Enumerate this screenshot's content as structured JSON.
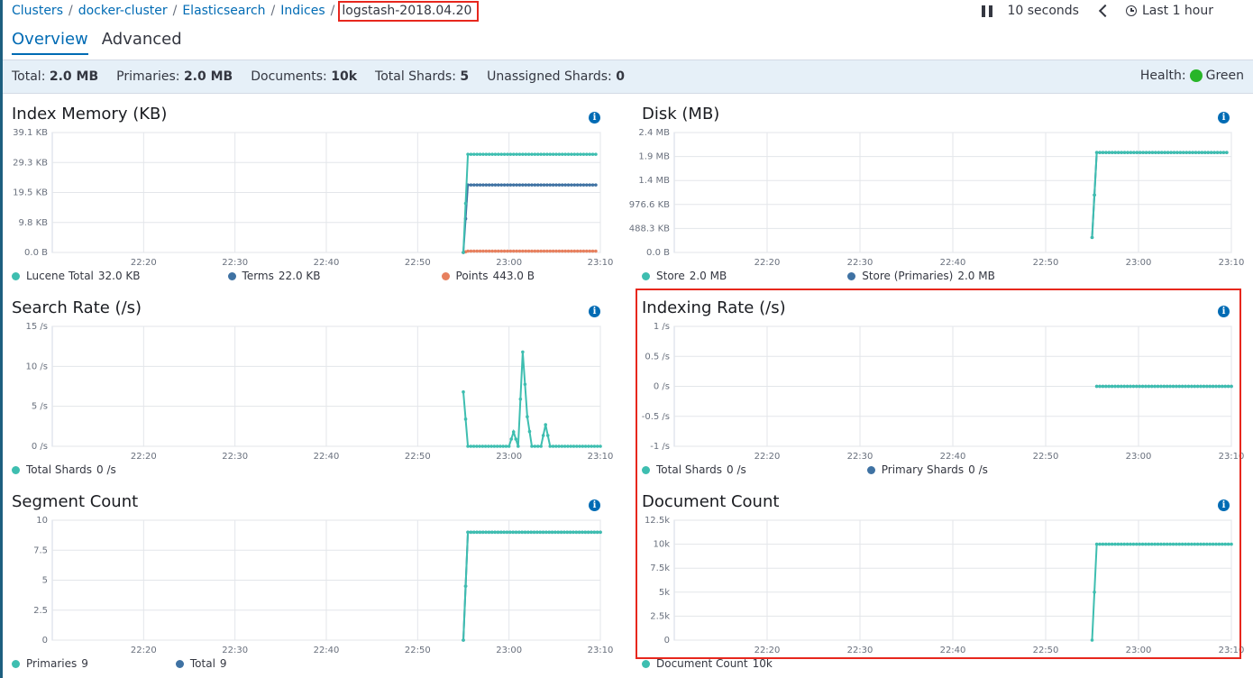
{
  "breadcrumb": [
    {
      "label": "Clusters"
    },
    {
      "label": "docker-cluster"
    },
    {
      "label": "Elasticsearch"
    },
    {
      "label": "Indices"
    }
  ],
  "breadcrumb_current": "logstash-2018.04.20",
  "controls": {
    "pause_icon": "pause-icon",
    "interval": "10 seconds",
    "time_range": "Last 1 hour"
  },
  "tabs": [
    {
      "label": "Overview",
      "active": true
    },
    {
      "label": "Advanced",
      "active": false
    }
  ],
  "summary": {
    "stats": [
      {
        "label": "Total:",
        "value": "2.0 MB"
      },
      {
        "label": "Primaries:",
        "value": "2.0 MB"
      },
      {
        "label": "Documents:",
        "value": "10k"
      },
      {
        "label": "Total Shards:",
        "value": "5"
      },
      {
        "label": "Unassigned Shards:",
        "value": "0"
      }
    ],
    "health_label": "Health:",
    "health_value": "Green",
    "health_color": "#28b528"
  },
  "colors": {
    "teal": "#3ebeb0",
    "blue": "#3f72a3",
    "orange": "#e7805e",
    "highlight": "#e7271d",
    "link": "#006bb4"
  },
  "chart_data": [
    {
      "type": "line",
      "title": "Index Memory (KB)",
      "yticks": [
        "39.1 KB",
        "29.3 KB",
        "19.5 KB",
        "9.8 KB",
        "0.0 B"
      ],
      "ylim": [
        0,
        39.1
      ],
      "xticks": [
        "22:20",
        "22:30",
        "22:40",
        "22:50",
        "23:00",
        "23:10"
      ],
      "series": [
        {
          "name": "Lucene Total",
          "value": "32.0 KB",
          "color": "#3ebeb0",
          "points": [
            [
              "22:55",
              0
            ],
            [
              "22:55.5",
              32.0
            ],
            [
              "23:09.5",
              32.0
            ]
          ]
        },
        {
          "name": "Terms",
          "value": "22.0 KB",
          "color": "#3f72a3",
          "points": [
            [
              "22:55",
              0
            ],
            [
              "22:55.5",
              22.0
            ],
            [
              "23:09.5",
              22.0
            ]
          ]
        },
        {
          "name": "Points",
          "value": "443.0 B",
          "color": "#e7805e",
          "points": [
            [
              "22:55",
              0
            ],
            [
              "22:55.5",
              0.43
            ],
            [
              "23:09.5",
              0.43
            ]
          ]
        }
      ]
    },
    {
      "type": "line",
      "title": "Disk (MB)",
      "yticks": [
        "2.4 MB",
        "1.9 MB",
        "1.4 MB",
        "976.6 KB",
        "488.3 KB",
        "0.0 B"
      ],
      "ylim": [
        0,
        2.4
      ],
      "xticks": [
        "22:20",
        "22:30",
        "22:40",
        "22:50",
        "23:00",
        "23:10"
      ],
      "series": [
        {
          "name": "Store",
          "value": "2.0 MB",
          "color": "#3ebeb0",
          "points": [
            [
              "22:55",
              0.3
            ],
            [
              "22:55.5",
              2.0
            ],
            [
              "23:09.5",
              2.0
            ]
          ]
        },
        {
          "name": "Store (Primaries)",
          "value": "2.0 MB",
          "color": "#3f72a3",
          "points": [
            [
              "22:55",
              0.3
            ],
            [
              "22:55.5",
              2.0
            ],
            [
              "23:09.5",
              2.0
            ]
          ]
        }
      ]
    },
    {
      "type": "line",
      "title": "Search Rate (/s)",
      "yticks": [
        "15 /s",
        "10 /s",
        "5 /s",
        "0 /s"
      ],
      "ylim": [
        0,
        15
      ],
      "xticks": [
        "22:20",
        "22:30",
        "22:40",
        "22:50",
        "23:00",
        "23:10"
      ],
      "series": [
        {
          "name": "Total Shards",
          "value": "0 /s",
          "color": "#3ebeb0",
          "points": [
            [
              "22:55",
              6.8
            ],
            [
              "22:55.5",
              0
            ],
            [
              "23:00",
              0
            ],
            [
              "23:00.5",
              1.8
            ],
            [
              "23:01",
              0
            ],
            [
              "23:01.5",
              11.8
            ],
            [
              "23:02",
              3.7
            ],
            [
              "23:02.5",
              0
            ],
            [
              "23:03.5",
              0
            ],
            [
              "23:04",
              2.7
            ],
            [
              "23:04.5",
              0
            ],
            [
              "23:10",
              0
            ]
          ]
        }
      ]
    },
    {
      "type": "line",
      "title": "Indexing Rate (/s)",
      "yticks": [
        "1 /s",
        "0.5 /s",
        "0 /s",
        "-0.5 /s",
        "-1 /s"
      ],
      "ylim": [
        -1,
        1
      ],
      "xticks": [
        "22:20",
        "22:30",
        "22:40",
        "22:50",
        "23:00",
        "23:10"
      ],
      "series": [
        {
          "name": "Total Shards",
          "value": "0 /s",
          "color": "#3ebeb0",
          "points": [
            [
              "22:55.5",
              0
            ],
            [
              "23:10",
              0
            ]
          ]
        },
        {
          "name": "Primary Shards",
          "value": "0 /s",
          "color": "#3f72a3",
          "points": [
            [
              "22:55.5",
              0
            ],
            [
              "23:10",
              0
            ]
          ]
        }
      ]
    },
    {
      "type": "line",
      "title": "Segment Count",
      "yticks": [
        "10",
        "7.5",
        "5",
        "2.5",
        "0"
      ],
      "ylim": [
        0,
        10
      ],
      "xticks": [
        "22:20",
        "22:30",
        "22:40",
        "22:50",
        "23:00",
        "23:10"
      ],
      "series": [
        {
          "name": "Primaries",
          "value": "9",
          "color": "#3ebeb0",
          "points": [
            [
              "22:55",
              0
            ],
            [
              "22:55.5",
              9
            ],
            [
              "23:10",
              9
            ]
          ]
        },
        {
          "name": "Total",
          "value": "9",
          "color": "#3f72a3",
          "points": [
            [
              "22:55",
              0
            ],
            [
              "22:55.5",
              9
            ],
            [
              "23:10",
              9
            ]
          ]
        }
      ]
    },
    {
      "type": "line",
      "title": "Document Count",
      "yticks": [
        "12.5k",
        "10k",
        "7.5k",
        "5k",
        "2.5k",
        "0"
      ],
      "ylim": [
        0,
        12500
      ],
      "xticks": [
        "22:20",
        "22:30",
        "22:40",
        "22:50",
        "23:00",
        "23:10"
      ],
      "series": [
        {
          "name": "Document Count",
          "value": "10k",
          "color": "#3ebeb0",
          "points": [
            [
              "22:55",
              0
            ],
            [
              "22:55.5",
              10000
            ],
            [
              "23:10",
              10000
            ]
          ]
        }
      ]
    }
  ]
}
